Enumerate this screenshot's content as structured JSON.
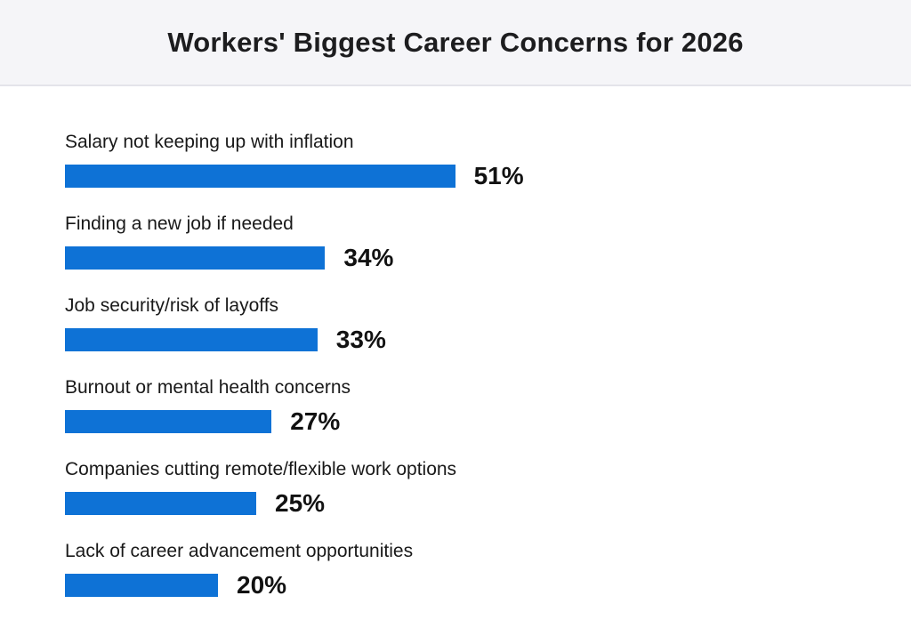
{
  "header": {
    "title": "Workers' Biggest Career Concerns for 2026"
  },
  "chart_data": {
    "type": "bar",
    "orientation": "horizontal",
    "title": "Workers' Biggest Career Concerns for 2026",
    "xlabel": "",
    "ylabel": "",
    "categories": [
      "Salary not keeping up with inflation",
      "Finding a new job if needed",
      "Job security/risk of layoffs",
      "Burnout or mental health concerns",
      "Companies cutting remote/flexible work options",
      "Lack of career advancement opportunities"
    ],
    "values": [
      51,
      34,
      33,
      27,
      25,
      20
    ],
    "value_labels": [
      "51%",
      "34%",
      "33%",
      "27%",
      "25%",
      "20%"
    ],
    "xlim": [
      0,
      55
    ],
    "grid": false,
    "legend": false,
    "bar_color": "#0e72d6"
  },
  "colors": {
    "bar": "#0e72d6",
    "header_bg": "#f5f5f8",
    "divider": "#e4e4ea",
    "title_text": "#1d1d1f",
    "label_text": "#191919",
    "value_text": "#121212"
  }
}
